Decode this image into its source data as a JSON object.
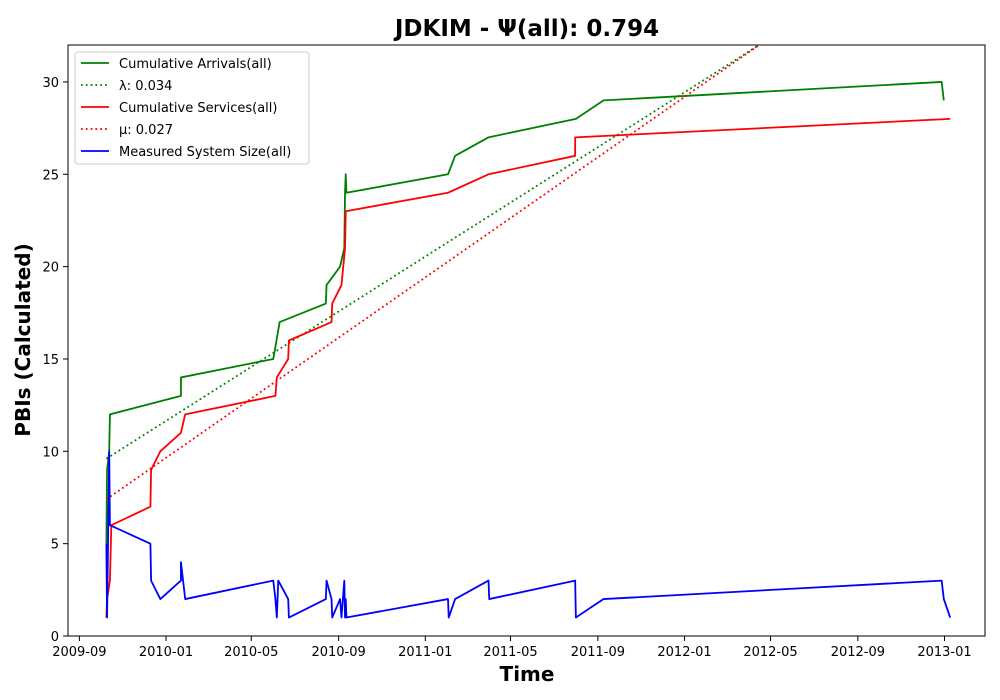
{
  "chart_data": {
    "type": "line",
    "title": "JDKIM -  Ψ(all): 0.794",
    "xlabel": "Time",
    "ylabel": "PBIs (Calculated)",
    "xlim": [
      "2009-08-16",
      "2013-02-27"
    ],
    "ylim": [
      0,
      32
    ],
    "x_ticks": [
      "2009-09",
      "2010-01",
      "2010-05",
      "2010-09",
      "2011-01",
      "2011-05",
      "2011-09",
      "2012-01",
      "2012-05",
      "2012-09",
      "2013-01"
    ],
    "y_ticks": [
      0,
      5,
      10,
      15,
      20,
      25,
      30
    ],
    "grid": false,
    "legend_position": "top-left",
    "series": [
      {
        "name": "Cumulative Arrivals(all)",
        "color": "#008000",
        "style": "solid",
        "points": [
          [
            "2009-10-09",
            5
          ],
          [
            "2009-10-10",
            9
          ],
          [
            "2009-10-13",
            10
          ],
          [
            "2009-10-14",
            12
          ],
          [
            "2010-01-22",
            13
          ],
          [
            "2010-01-22",
            14
          ],
          [
            "2010-06-01",
            15
          ],
          [
            "2010-06-10",
            17
          ],
          [
            "2010-08-14",
            18
          ],
          [
            "2010-08-15",
            19
          ],
          [
            "2010-09-03",
            20
          ],
          [
            "2010-09-09",
            21
          ],
          [
            "2010-09-10",
            24
          ],
          [
            "2010-09-11",
            25
          ],
          [
            "2010-09-12",
            24
          ],
          [
            "2011-02-02",
            25
          ],
          [
            "2011-02-12",
            26
          ],
          [
            "2011-03-31",
            27
          ],
          [
            "2011-08-01",
            28
          ],
          [
            "2011-09-09",
            29
          ],
          [
            "2012-12-28",
            30
          ],
          [
            "2012-12-31",
            29
          ]
        ]
      },
      {
        "name": "λ: 0.034",
        "color": "#008000",
        "style": "dotted",
        "points": [
          [
            "2009-10-09",
            9.6
          ],
          [
            "2012-04-15",
            32
          ]
        ]
      },
      {
        "name": "Cumulative Services(all)",
        "color": "#ff0000",
        "style": "solid",
        "points": [
          [
            "2009-10-09",
            1
          ],
          [
            "2009-10-10",
            2
          ],
          [
            "2009-10-14",
            3
          ],
          [
            "2009-10-16",
            6
          ],
          [
            "2009-12-10",
            7
          ],
          [
            "2009-12-11",
            9
          ],
          [
            "2009-12-24",
            10
          ],
          [
            "2010-01-22",
            11
          ],
          [
            "2010-01-28",
            12
          ],
          [
            "2010-06-04",
            13
          ],
          [
            "2010-06-06",
            14
          ],
          [
            "2010-06-22",
            15
          ],
          [
            "2010-06-23",
            16
          ],
          [
            "2010-08-22",
            17
          ],
          [
            "2010-08-23",
            18
          ],
          [
            "2010-09-05",
            19
          ],
          [
            "2010-09-10",
            21
          ],
          [
            "2010-09-11",
            23
          ],
          [
            "2011-02-02",
            24
          ],
          [
            "2011-03-31",
            25
          ],
          [
            "2011-07-31",
            26
          ],
          [
            "2011-07-31",
            27
          ],
          [
            "2013-01-09",
            28
          ]
        ]
      },
      {
        "name": "μ: 0.027",
        "color": "#ff0000",
        "style": "dotted",
        "points": [
          [
            "2009-10-09",
            7.4
          ],
          [
            "2012-04-15",
            32
          ]
        ]
      },
      {
        "name": "Measured System Size(all)",
        "color": "#0000ff",
        "style": "solid",
        "points": [
          [
            "2009-10-09",
            5
          ],
          [
            "2009-10-10",
            1
          ],
          [
            "2009-10-12",
            7
          ],
          [
            "2009-10-13",
            10
          ],
          [
            "2009-10-14",
            6
          ],
          [
            "2009-12-10",
            5
          ],
          [
            "2009-12-11",
            3
          ],
          [
            "2009-12-24",
            2
          ],
          [
            "2010-01-22",
            3
          ],
          [
            "2010-01-22",
            4
          ],
          [
            "2010-01-28",
            2
          ],
          [
            "2010-06-01",
            3
          ],
          [
            "2010-06-04",
            2
          ],
          [
            "2010-06-06",
            1
          ],
          [
            "2010-06-08",
            3
          ],
          [
            "2010-06-22",
            2
          ],
          [
            "2010-06-23",
            1
          ],
          [
            "2010-08-14",
            2
          ],
          [
            "2010-08-15",
            3
          ],
          [
            "2010-08-22",
            2
          ],
          [
            "2010-08-23",
            1
          ],
          [
            "2010-09-03",
            2
          ],
          [
            "2010-09-05",
            1
          ],
          [
            "2010-09-09",
            3
          ],
          [
            "2010-09-10",
            1
          ],
          [
            "2010-09-11",
            2
          ],
          [
            "2010-09-12",
            1
          ],
          [
            "2011-02-02",
            2
          ],
          [
            "2011-02-03",
            1
          ],
          [
            "2011-02-12",
            2
          ],
          [
            "2011-03-31",
            3
          ],
          [
            "2011-04-01",
            2
          ],
          [
            "2011-07-31",
            3
          ],
          [
            "2011-08-01",
            1
          ],
          [
            "2011-09-09",
            2
          ],
          [
            "2012-12-28",
            3
          ],
          [
            "2012-12-31",
            2
          ],
          [
            "2013-01-09",
            1
          ]
        ]
      }
    ]
  }
}
